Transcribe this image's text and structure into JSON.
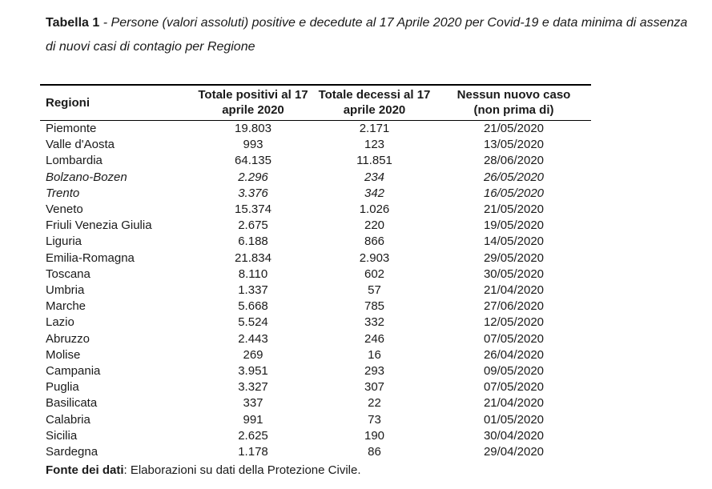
{
  "caption": {
    "label": "Tabella 1",
    "text": " - Persone (valori assoluti) positive e decedute al 17 Aprile 2020 per Covid-19 e data minima di assenza di nuovi casi di contagio per Regione"
  },
  "table": {
    "headers": [
      {
        "line1": "Regioni",
        "line2": ""
      },
      {
        "line1": "Totale positivi al 17",
        "line2": "aprile 2020"
      },
      {
        "line1": "Totale decessi al 17",
        "line2": "aprile 2020"
      },
      {
        "line1": "Nessun nuovo caso",
        "line2": "(non prima di)"
      }
    ],
    "rows": [
      {
        "region": "Piemonte",
        "positivi": "19.803",
        "decessi": "2.171",
        "nessun_nuovo_caso": "21/05/2020",
        "italic": false
      },
      {
        "region": "Valle d'Aosta",
        "positivi": "993",
        "decessi": "123",
        "nessun_nuovo_caso": "13/05/2020",
        "italic": false
      },
      {
        "region": "Lombardia",
        "positivi": "64.135",
        "decessi": "11.851",
        "nessun_nuovo_caso": "28/06/2020",
        "italic": false
      },
      {
        "region": "Bolzano-Bozen",
        "positivi": "2.296",
        "decessi": "234",
        "nessun_nuovo_caso": "26/05/2020",
        "italic": true
      },
      {
        "region": "Trento",
        "positivi": "3.376",
        "decessi": "342",
        "nessun_nuovo_caso": "16/05/2020",
        "italic": true
      },
      {
        "region": "Veneto",
        "positivi": "15.374",
        "decessi": "1.026",
        "nessun_nuovo_caso": "21/05/2020",
        "italic": false
      },
      {
        "region": "Friuli Venezia Giulia",
        "positivi": "2.675",
        "decessi": "220",
        "nessun_nuovo_caso": "19/05/2020",
        "italic": false
      },
      {
        "region": "Liguria",
        "positivi": "6.188",
        "decessi": "866",
        "nessun_nuovo_caso": "14/05/2020",
        "italic": false
      },
      {
        "region": "Emilia-Romagna",
        "positivi": "21.834",
        "decessi": "2.903",
        "nessun_nuovo_caso": "29/05/2020",
        "italic": false
      },
      {
        "region": "Toscana",
        "positivi": "8.110",
        "decessi": "602",
        "nessun_nuovo_caso": "30/05/2020",
        "italic": false
      },
      {
        "region": "Umbria",
        "positivi": "1.337",
        "decessi": "57",
        "nessun_nuovo_caso": "21/04/2020",
        "italic": false
      },
      {
        "region": "Marche",
        "positivi": "5.668",
        "decessi": "785",
        "nessun_nuovo_caso": "27/06/2020",
        "italic": false
      },
      {
        "region": "Lazio",
        "positivi": "5.524",
        "decessi": "332",
        "nessun_nuovo_caso": "12/05/2020",
        "italic": false
      },
      {
        "region": "Abruzzo",
        "positivi": "2.443",
        "decessi": "246",
        "nessun_nuovo_caso": "07/05/2020",
        "italic": false
      },
      {
        "region": "Molise",
        "positivi": "269",
        "decessi": "16",
        "nessun_nuovo_caso": "26/04/2020",
        "italic": false
      },
      {
        "region": "Campania",
        "positivi": "3.951",
        "decessi": "293",
        "nessun_nuovo_caso": "09/05/2020",
        "italic": false
      },
      {
        "region": "Puglia",
        "positivi": "3.327",
        "decessi": "307",
        "nessun_nuovo_caso": "07/05/2020",
        "italic": false
      },
      {
        "region": "Basilicata",
        "positivi": "337",
        "decessi": "22",
        "nessun_nuovo_caso": "21/04/2020",
        "italic": false
      },
      {
        "region": "Calabria",
        "positivi": "991",
        "decessi": "73",
        "nessun_nuovo_caso": "01/05/2020",
        "italic": false
      },
      {
        "region": "Sicilia",
        "positivi": "2.625",
        "decessi": "190",
        "nessun_nuovo_caso": "30/04/2020",
        "italic": false
      },
      {
        "region": "Sardegna",
        "positivi": "1.178",
        "decessi": "86",
        "nessun_nuovo_caso": "29/04/2020",
        "italic": false
      }
    ]
  },
  "source": {
    "label": "Fonte dei dati",
    "text": ": Elaborazioni su dati della Protezione Civile."
  },
  "colors": {
    "background": "#ffffff",
    "text": "#1a1a1a",
    "rule": "#000000"
  }
}
